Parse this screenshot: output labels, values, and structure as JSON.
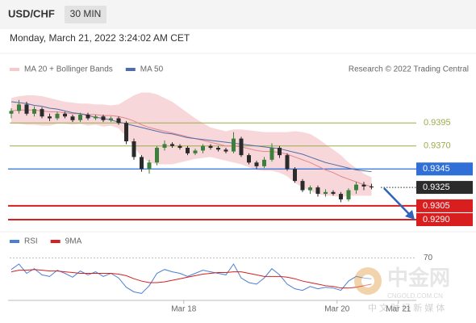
{
  "chart_data": {
    "type": "candlestick",
    "symbol": "USD/CHF",
    "timeframe": "30 MIN",
    "timestamp": "Monday, March 21, 2022 3:24:02 AM CET",
    "source": "Research © 2022 Trading Central",
    "up_color": "#3d7f3d",
    "down_color": "#2b2b2b",
    "open": [
      0.9405,
      0.9408,
      0.9415,
      0.9405,
      0.941,
      0.9402,
      0.94,
      0.9405,
      0.9402,
      0.9398,
      0.9404,
      0.94,
      0.9402,
      0.9398,
      0.94,
      0.9395,
      0.9375,
      0.9358,
      0.9345,
      0.9352,
      0.9368,
      0.9372,
      0.937,
      0.9368,
      0.9362,
      0.9365,
      0.937,
      0.9368,
      0.9366,
      0.9364,
      0.9378,
      0.936,
      0.9352,
      0.9348,
      0.9355,
      0.9368,
      0.936,
      0.9345,
      0.9332,
      0.9322,
      0.9325,
      0.9318,
      0.932,
      0.9318,
      0.9312,
      0.9322,
      0.9328,
      0.9326
    ],
    "high": [
      0.9411,
      0.942,
      0.9418,
      0.9413,
      0.9412,
      0.9405,
      0.9407,
      0.9407,
      0.9404,
      0.9406,
      0.9406,
      0.9404,
      0.9404,
      0.9402,
      0.9402,
      0.9397,
      0.9378,
      0.936,
      0.9355,
      0.937,
      0.9376,
      0.9374,
      0.9372,
      0.937,
      0.9367,
      0.9372,
      0.9372,
      0.937,
      0.9368,
      0.9385,
      0.938,
      0.9362,
      0.9354,
      0.9358,
      0.9373,
      0.937,
      0.9362,
      0.9347,
      0.9334,
      0.9327,
      0.9327,
      0.9323,
      0.9322,
      0.932,
      0.9324,
      0.9331,
      0.9331,
      0.9329
    ],
    "low": [
      0.94,
      0.9405,
      0.9403,
      0.9402,
      0.94,
      0.9397,
      0.9398,
      0.94,
      0.9396,
      0.9396,
      0.9398,
      0.9398,
      0.9396,
      0.9396,
      0.9393,
      0.9372,
      0.9355,
      0.9342,
      0.934,
      0.9349,
      0.9365,
      0.9368,
      0.9366,
      0.936,
      0.936,
      0.9362,
      0.9366,
      0.9364,
      0.9362,
      0.9362,
      0.9358,
      0.935,
      0.9345,
      0.9346,
      0.9353,
      0.9357,
      0.9343,
      0.933,
      0.932,
      0.9318,
      0.9315,
      0.9315,
      0.9316,
      0.9309,
      0.931,
      0.9318,
      0.9322,
      0.9323
    ],
    "close": [
      0.9408,
      0.9415,
      0.9405,
      0.941,
      0.9402,
      0.94,
      0.9405,
      0.9402,
      0.9398,
      0.9404,
      0.94,
      0.9402,
      0.9398,
      0.94,
      0.9395,
      0.9375,
      0.9358,
      0.9345,
      0.9352,
      0.9368,
      0.9372,
      0.937,
      0.9368,
      0.9362,
      0.9365,
      0.937,
      0.9368,
      0.9366,
      0.9364,
      0.9378,
      0.936,
      0.9352,
      0.9348,
      0.9355,
      0.9368,
      0.936,
      0.9345,
      0.9332,
      0.9322,
      0.9325,
      0.9318,
      0.932,
      0.9318,
      0.9312,
      0.9322,
      0.9328,
      0.9326,
      0.9325
    ],
    "series": [
      {
        "name": "MA 20 + Bollinger Bands",
        "color": "#e0868e",
        "band_color": "#f6c9cd",
        "values": [
          0.9408,
          0.9409,
          0.9409,
          0.9409,
          0.9408,
          0.9407,
          0.9407,
          0.9406,
          0.9405,
          0.9405,
          0.9404,
          0.9404,
          0.9403,
          0.9403,
          0.9402,
          0.94,
          0.9397,
          0.9393,
          0.939,
          0.9388,
          0.9386,
          0.9384,
          0.9382,
          0.938,
          0.9378,
          0.9376,
          0.9374,
          0.9372,
          0.937,
          0.937,
          0.9369,
          0.9367,
          0.9365,
          0.9364,
          0.9364,
          0.9363,
          0.9361,
          0.9358,
          0.9355,
          0.9352,
          0.9348,
          0.9344,
          0.9341,
          0.9337,
          0.9334,
          0.9331,
          0.9328,
          0.9326
        ],
        "upper": [
          0.9422,
          0.9424,
          0.9425,
          0.9425,
          0.9424,
          0.9422,
          0.942,
          0.9418,
          0.9417,
          0.9416,
          0.9416,
          0.9415,
          0.9415,
          0.9414,
          0.9415,
          0.942,
          0.9425,
          0.9428,
          0.9428,
          0.9426,
          0.9422,
          0.9418,
          0.9412,
          0.9406,
          0.94,
          0.9395,
          0.939,
          0.9388,
          0.9386,
          0.9388,
          0.9388,
          0.9387,
          0.9386,
          0.9385,
          0.9385,
          0.9385,
          0.9385,
          0.9386,
          0.9385,
          0.9383,
          0.9378,
          0.9372,
          0.9366,
          0.936,
          0.9352,
          0.9346,
          0.934,
          0.9336
        ],
        "lower": [
          0.9394,
          0.9394,
          0.9393,
          0.9393,
          0.9392,
          0.9392,
          0.9394,
          0.9394,
          0.9393,
          0.9394,
          0.9392,
          0.9393,
          0.9391,
          0.9392,
          0.9389,
          0.938,
          0.9369,
          0.9358,
          0.9352,
          0.935,
          0.935,
          0.935,
          0.9352,
          0.9354,
          0.9356,
          0.9357,
          0.9358,
          0.9356,
          0.9354,
          0.9352,
          0.935,
          0.9347,
          0.9344,
          0.9343,
          0.9343,
          0.9341,
          0.9337,
          0.933,
          0.9325,
          0.9321,
          0.9318,
          0.9316,
          0.9316,
          0.9314,
          0.9316,
          0.9316,
          0.9316,
          0.9316
        ]
      },
      {
        "name": "MA 50",
        "color": "#4f6ea8",
        "values": [
          0.9418,
          0.9417,
          0.9416,
          0.9414,
          0.9413,
          0.9411,
          0.941,
          0.9408,
          0.9406,
          0.9405,
          0.9403,
          0.9401,
          0.94,
          0.9398,
          0.9396,
          0.9394,
          0.9392,
          0.939,
          0.9388,
          0.9386,
          0.9384,
          0.9383,
          0.9381,
          0.9379,
          0.9378,
          0.9377,
          0.9376,
          0.9375,
          0.9374,
          0.9373,
          0.9372,
          0.9371,
          0.937,
          0.9369,
          0.9368,
          0.9367,
          0.9365,
          0.9363,
          0.9361,
          0.9358,
          0.9355,
          0.9352,
          0.935,
          0.9348,
          0.9346,
          0.9344,
          0.9343,
          0.9342
        ]
      }
    ],
    "ylim": [
      0.9283,
      0.9432
    ],
    "levels": [
      {
        "value": 0.9395,
        "color": "#9aae4a",
        "style": "line"
      },
      {
        "value": 0.937,
        "label": "0.9370",
        "color": "#9aae4a",
        "style": "line"
      },
      {
        "value": 0.9345,
        "color": "#2f6fd6",
        "style": "box"
      },
      {
        "value": 0.9325,
        "color": "#2b2b2b",
        "style": "current"
      },
      {
        "value": 0.9305,
        "color": "#d81e1e",
        "style": "box"
      },
      {
        "value": 0.929,
        "label": "0.9290",
        "color": "#d81e1e",
        "style": "box"
      }
    ],
    "xlim": [
      0,
      60
    ],
    "xticks": [
      {
        "value": 22.5,
        "label": "Mar 18"
      },
      {
        "value": 42.5,
        "label": "Mar 20"
      },
      {
        "value": 50.5,
        "label": "Mar 21"
      }
    ],
    "indicator": {
      "series": [
        {
          "name": "RSI",
          "color": "#4a7fd4",
          "values": [
            55,
            62,
            50,
            56,
            48,
            46,
            54,
            50,
            45,
            53,
            48,
            52,
            46,
            50,
            44,
            32,
            26,
            24,
            34,
            50,
            55,
            52,
            50,
            46,
            50,
            54,
            52,
            50,
            48,
            62,
            44,
            38,
            36,
            44,
            56,
            48,
            36,
            30,
            28,
            33,
            30,
            32,
            31,
            28,
            40,
            46,
            44,
            43
          ]
        },
        {
          "name": "9MA",
          "color": "#d42020",
          "values": [
            52,
            54,
            54,
            55,
            54,
            53,
            53,
            52,
            51,
            50,
            50,
            50,
            50,
            50,
            49,
            47,
            43,
            40,
            38,
            38,
            39,
            41,
            43,
            45,
            47,
            49,
            50,
            51,
            51,
            52,
            52,
            50,
            48,
            46,
            46,
            46,
            45,
            43,
            40,
            38,
            36,
            34,
            33,
            31,
            31,
            32,
            34,
            36
          ]
        }
      ],
      "ylim": [
        15,
        85
      ],
      "yticks": [
        70
      ]
    },
    "watermark": {
      "name": "中金网",
      "site": "CNGOLD.COM.CN",
      "tagline": "中 文 财 经 新 媒 体"
    }
  }
}
